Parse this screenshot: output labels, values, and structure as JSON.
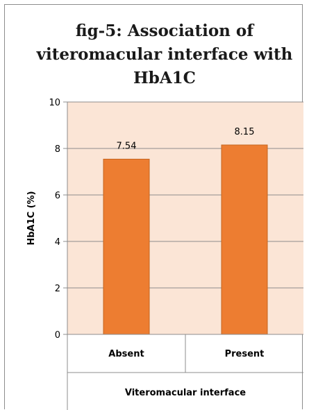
{
  "chart_data": {
    "type": "bar",
    "title": "fig-5: Association of viteromacular interface with HbA1C",
    "title_lines": [
      "fig-5: Association of",
      "viteromacular interface with",
      "HbA1C"
    ],
    "categories": [
      "Absent",
      "Present"
    ],
    "values": [
      7.54,
      8.15
    ],
    "data_labels": [
      "7.54",
      "8.15"
    ],
    "xlabel": "Viteromacular interface",
    "ylabel": "HbA1C (%)",
    "ylim": [
      0,
      10
    ],
    "yticks": [
      0,
      2,
      4,
      6,
      8,
      10
    ],
    "grid": true,
    "legend": "none",
    "colors": {
      "bar": "#ed7d31",
      "bar_edge": "#c5651f",
      "plot_bg": "#fbe5d6",
      "grid": "#8c8c8c"
    }
  }
}
